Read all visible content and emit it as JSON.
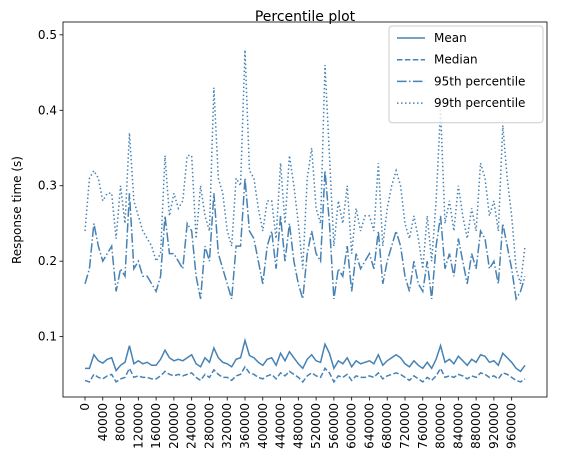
{
  "chart_data": {
    "type": "line",
    "title": "Percentile plot",
    "y_label": "Response time (s)",
    "x": [
      0,
      10000,
      20000,
      30000,
      40000,
      50000,
      60000,
      70000,
      80000,
      90000,
      100000,
      110000,
      120000,
      130000,
      140000,
      150000,
      160000,
      170000,
      180000,
      190000,
      200000,
      210000,
      220000,
      230000,
      240000,
      250000,
      260000,
      270000,
      280000,
      290000,
      300000,
      310000,
      320000,
      330000,
      340000,
      350000,
      360000,
      370000,
      380000,
      390000,
      400000,
      410000,
      420000,
      430000,
      440000,
      450000,
      460000,
      470000,
      480000,
      490000,
      500000,
      510000,
      520000,
      530000,
      540000,
      550000,
      560000,
      570000,
      580000,
      590000,
      600000,
      610000,
      620000,
      630000,
      640000,
      650000,
      660000,
      670000,
      680000,
      690000,
      700000,
      710000,
      720000,
      730000,
      740000,
      750000,
      760000,
      770000,
      780000,
      790000,
      800000,
      810000,
      820000,
      830000,
      840000,
      850000,
      860000,
      870000,
      880000,
      890000,
      900000,
      910000,
      920000,
      930000,
      940000,
      950000,
      960000,
      970000,
      980000,
      990000
    ],
    "series": [
      {
        "name": "Mean",
        "color": "#4682b4",
        "dash": "solid",
        "values": [
          0.058,
          0.058,
          0.076,
          0.068,
          0.065,
          0.07,
          0.072,
          0.055,
          0.062,
          0.066,
          0.088,
          0.064,
          0.068,
          0.064,
          0.066,
          0.062,
          0.062,
          0.07,
          0.082,
          0.072,
          0.068,
          0.07,
          0.068,
          0.072,
          0.076,
          0.064,
          0.06,
          0.072,
          0.066,
          0.085,
          0.072,
          0.066,
          0.064,
          0.06,
          0.07,
          0.072,
          0.095,
          0.075,
          0.072,
          0.066,
          0.062,
          0.07,
          0.072,
          0.062,
          0.078,
          0.068,
          0.08,
          0.072,
          0.064,
          0.058,
          0.07,
          0.076,
          0.068,
          0.066,
          0.09,
          0.078,
          0.058,
          0.068,
          0.064,
          0.072,
          0.06,
          0.068,
          0.064,
          0.066,
          0.068,
          0.064,
          0.076,
          0.062,
          0.068,
          0.072,
          0.076,
          0.072,
          0.064,
          0.06,
          0.068,
          0.062,
          0.058,
          0.066,
          0.058,
          0.07,
          0.088,
          0.066,
          0.07,
          0.064,
          0.074,
          0.068,
          0.062,
          0.07,
          0.066,
          0.076,
          0.074,
          0.066,
          0.068,
          0.062,
          0.078,
          0.072,
          0.066,
          0.058,
          0.054,
          0.062
        ]
      },
      {
        "name": "Median",
        "color": "#4682b4",
        "dash": "dashed",
        "values": [
          0.042,
          0.04,
          0.05,
          0.046,
          0.044,
          0.048,
          0.05,
          0.04,
          0.044,
          0.046,
          0.058,
          0.046,
          0.048,
          0.046,
          0.046,
          0.044,
          0.044,
          0.048,
          0.054,
          0.05,
          0.048,
          0.05,
          0.048,
          0.05,
          0.052,
          0.046,
          0.042,
          0.05,
          0.046,
          0.056,
          0.05,
          0.046,
          0.046,
          0.042,
          0.048,
          0.05,
          0.06,
          0.052,
          0.05,
          0.046,
          0.044,
          0.048,
          0.05,
          0.044,
          0.052,
          0.048,
          0.054,
          0.05,
          0.046,
          0.04,
          0.048,
          0.052,
          0.048,
          0.046,
          0.058,
          0.052,
          0.04,
          0.048,
          0.046,
          0.05,
          0.042,
          0.048,
          0.046,
          0.046,
          0.048,
          0.046,
          0.052,
          0.044,
          0.048,
          0.05,
          0.052,
          0.05,
          0.046,
          0.042,
          0.048,
          0.044,
          0.04,
          0.046,
          0.042,
          0.048,
          0.058,
          0.046,
          0.048,
          0.046,
          0.05,
          0.048,
          0.044,
          0.048,
          0.046,
          0.052,
          0.05,
          0.046,
          0.048,
          0.044,
          0.052,
          0.05,
          0.046,
          0.042,
          0.04,
          0.044
        ]
      },
      {
        "name": "95th percentile",
        "color": "#4682b4",
        "dash": "dashdot",
        "values": [
          0.17,
          0.19,
          0.25,
          0.22,
          0.2,
          0.21,
          0.22,
          0.16,
          0.19,
          0.18,
          0.29,
          0.19,
          0.2,
          0.18,
          0.18,
          0.17,
          0.16,
          0.18,
          0.26,
          0.21,
          0.21,
          0.2,
          0.19,
          0.25,
          0.24,
          0.18,
          0.15,
          0.22,
          0.2,
          0.29,
          0.21,
          0.19,
          0.17,
          0.15,
          0.22,
          0.22,
          0.31,
          0.24,
          0.23,
          0.2,
          0.17,
          0.22,
          0.24,
          0.19,
          0.26,
          0.2,
          0.25,
          0.2,
          0.17,
          0.15,
          0.21,
          0.24,
          0.21,
          0.2,
          0.32,
          0.25,
          0.15,
          0.19,
          0.18,
          0.22,
          0.16,
          0.21,
          0.19,
          0.2,
          0.21,
          0.19,
          0.24,
          0.17,
          0.2,
          0.22,
          0.24,
          0.22,
          0.18,
          0.16,
          0.2,
          0.17,
          0.16,
          0.2,
          0.15,
          0.22,
          0.26,
          0.19,
          0.21,
          0.18,
          0.23,
          0.2,
          0.17,
          0.21,
          0.19,
          0.24,
          0.23,
          0.19,
          0.2,
          0.17,
          0.25,
          0.22,
          0.19,
          0.15,
          0.16,
          0.18
        ]
      },
      {
        "name": "99th percentile",
        "color": "#4682b4",
        "dash": "dotted",
        "values": [
          0.24,
          0.31,
          0.32,
          0.31,
          0.28,
          0.29,
          0.29,
          0.23,
          0.3,
          0.25,
          0.37,
          0.28,
          0.26,
          0.24,
          0.23,
          0.22,
          0.2,
          0.21,
          0.34,
          0.26,
          0.29,
          0.27,
          0.28,
          0.34,
          0.34,
          0.23,
          0.3,
          0.26,
          0.24,
          0.43,
          0.31,
          0.29,
          0.24,
          0.22,
          0.31,
          0.3,
          0.48,
          0.32,
          0.31,
          0.27,
          0.24,
          0.28,
          0.28,
          0.23,
          0.33,
          0.25,
          0.34,
          0.3,
          0.25,
          0.19,
          0.31,
          0.35,
          0.27,
          0.25,
          0.46,
          0.34,
          0.22,
          0.28,
          0.25,
          0.3,
          0.21,
          0.27,
          0.24,
          0.26,
          0.26,
          0.24,
          0.33,
          0.22,
          0.27,
          0.3,
          0.32,
          0.3,
          0.25,
          0.23,
          0.26,
          0.23,
          0.19,
          0.26,
          0.2,
          0.28,
          0.4,
          0.25,
          0.28,
          0.24,
          0.3,
          0.26,
          0.23,
          0.27,
          0.24,
          0.33,
          0.31,
          0.26,
          0.28,
          0.24,
          0.38,
          0.31,
          0.26,
          0.19,
          0.17,
          0.22
        ]
      }
    ],
    "xlim": [
      -49500,
      1039500
    ],
    "ylim": [
      0.02,
      0.517
    ],
    "xticks": [
      0,
      40000,
      80000,
      120000,
      160000,
      200000,
      240000,
      280000,
      320000,
      360000,
      400000,
      440000,
      480000,
      520000,
      560000,
      600000,
      640000,
      680000,
      720000,
      760000,
      800000,
      840000,
      880000,
      920000,
      960000
    ],
    "yticks": [
      0.1,
      0.2,
      0.3,
      0.4,
      0.5
    ],
    "legend": "upper right"
  }
}
